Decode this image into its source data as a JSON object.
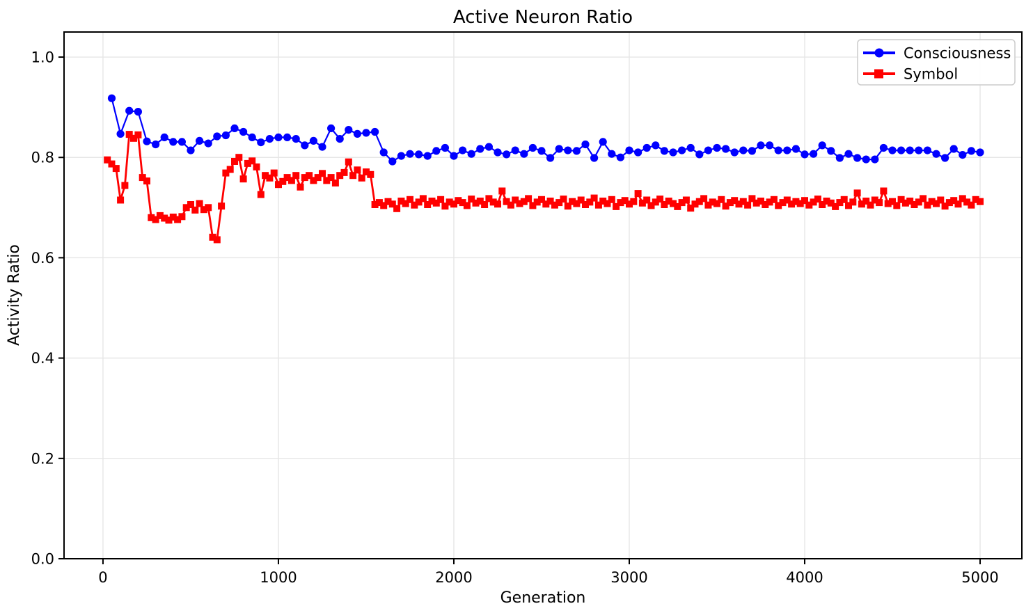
{
  "chart_data": {
    "type": "line",
    "title": "Active Neuron Ratio",
    "xlabel": "Generation",
    "ylabel": "Activity Ratio",
    "xlim": [
      -222,
      5238
    ],
    "ylim": [
      0,
      1.05
    ],
    "xticks": [
      0,
      1000,
      2000,
      3000,
      4000,
      5000
    ],
    "yticks": [
      0.0,
      0.2,
      0.4,
      0.6,
      0.8,
      1.0
    ],
    "grid": true,
    "grid_color": "#e6e6e6",
    "spine_color": "#000000",
    "background_color": "#ffffff",
    "legend": {
      "position": "upper right",
      "border_color": "#cccccc",
      "fill": "#ffffff"
    },
    "series": [
      {
        "name": "Consciousness",
        "color": "#0000ff",
        "marker": "circle",
        "line_width": 2.2,
        "x_start": 50,
        "x_step": 50,
        "values": [
          0.918,
          0.847,
          0.893,
          0.891,
          0.832,
          0.826,
          0.84,
          0.831,
          0.831,
          0.814,
          0.833,
          0.828,
          0.842,
          0.844,
          0.858,
          0.851,
          0.84,
          0.83,
          0.837,
          0.84,
          0.84,
          0.837,
          0.824,
          0.833,
          0.821,
          0.858,
          0.837,
          0.855,
          0.847,
          0.849,
          0.851,
          0.81,
          0.792,
          0.803,
          0.807,
          0.806,
          0.803,
          0.813,
          0.819,
          0.803,
          0.814,
          0.807,
          0.817,
          0.821,
          0.81,
          0.806,
          0.814,
          0.807,
          0.819,
          0.813,
          0.799,
          0.817,
          0.814,
          0.813,
          0.826,
          0.799,
          0.831,
          0.807,
          0.8,
          0.814,
          0.81,
          0.819,
          0.824,
          0.813,
          0.81,
          0.814,
          0.819,
          0.806,
          0.814,
          0.819,
          0.817,
          0.81,
          0.814,
          0.813,
          0.824,
          0.824,
          0.814,
          0.814,
          0.817,
          0.806,
          0.807,
          0.824,
          0.813,
          0.799,
          0.807,
          0.799,
          0.796,
          0.796,
          0.819,
          0.814,
          0.814,
          0.814,
          0.814,
          0.814,
          0.807,
          0.799,
          0.817,
          0.805,
          0.813,
          0.81
        ]
      },
      {
        "name": "Symbol",
        "color": "#ff0000",
        "marker": "square",
        "line_width": 2.8,
        "x_start": 25,
        "x_step": 25,
        "values": [
          0.795,
          0.787,
          0.778,
          0.715,
          0.744,
          0.846,
          0.838,
          0.845,
          0.76,
          0.753,
          0.68,
          0.676,
          0.684,
          0.679,
          0.675,
          0.681,
          0.676,
          0.682,
          0.7,
          0.706,
          0.695,
          0.708,
          0.696,
          0.7,
          0.641,
          0.636,
          0.703,
          0.769,
          0.776,
          0.792,
          0.8,
          0.757,
          0.788,
          0.793,
          0.781,
          0.726,
          0.764,
          0.759,
          0.769,
          0.746,
          0.752,
          0.76,
          0.754,
          0.764,
          0.741,
          0.76,
          0.764,
          0.754,
          0.76,
          0.768,
          0.754,
          0.76,
          0.749,
          0.764,
          0.77,
          0.791,
          0.764,
          0.775,
          0.759,
          0.771,
          0.766,
          0.706,
          0.71,
          0.704,
          0.712,
          0.707,
          0.698,
          0.713,
          0.708,
          0.716,
          0.705,
          0.711,
          0.718,
          0.706,
          0.713,
          0.709,
          0.716,
          0.703,
          0.711,
          0.707,
          0.714,
          0.71,
          0.704,
          0.717,
          0.709,
          0.713,
          0.706,
          0.718,
          0.711,
          0.707,
          0.733,
          0.712,
          0.705,
          0.715,
          0.708,
          0.712,
          0.718,
          0.704,
          0.711,
          0.716,
          0.707,
          0.713,
          0.705,
          0.71,
          0.717,
          0.703,
          0.712,
          0.708,
          0.715,
          0.706,
          0.711,
          0.719,
          0.705,
          0.713,
          0.708,
          0.716,
          0.702,
          0.71,
          0.714,
          0.707,
          0.712,
          0.728,
          0.709,
          0.715,
          0.704,
          0.711,
          0.717,
          0.706,
          0.713,
          0.708,
          0.702,
          0.71,
          0.715,
          0.699,
          0.707,
          0.712,
          0.718,
          0.705,
          0.711,
          0.708,
          0.716,
          0.703,
          0.71,
          0.714,
          0.707,
          0.712,
          0.705,
          0.718,
          0.709,
          0.713,
          0.706,
          0.711,
          0.716,
          0.704,
          0.71,
          0.715,
          0.707,
          0.712,
          0.708,
          0.714,
          0.705,
          0.711,
          0.717,
          0.706,
          0.713,
          0.709,
          0.702,
          0.71,
          0.716,
          0.704,
          0.711,
          0.729,
          0.707,
          0.713,
          0.705,
          0.715,
          0.71,
          0.733,
          0.708,
          0.712,
          0.704,
          0.716,
          0.709,
          0.713,
          0.706,
          0.711,
          0.718,
          0.705,
          0.712,
          0.708,
          0.715,
          0.703,
          0.71,
          0.714,
          0.707,
          0.718,
          0.711,
          0.705,
          0.716,
          0.712
        ]
      }
    ]
  }
}
